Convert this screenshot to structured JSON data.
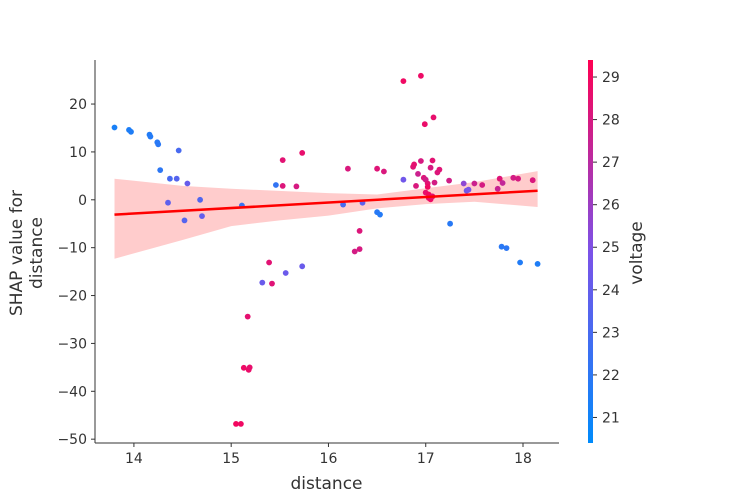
{
  "chart_data": {
    "type": "scatter",
    "title": "",
    "xlabel": "distance",
    "ylabel": "SHAP value for\ndistance",
    "xlim": [
      13.6,
      18.37
    ],
    "ylim": [
      -50.8,
      29.2
    ],
    "xticks": [
      14,
      15,
      16,
      17,
      18
    ],
    "yticks": [
      20,
      10,
      0,
      -10,
      -20,
      -30,
      -40,
      -50
    ],
    "grid": false,
    "colorbar": {
      "label": "voltage",
      "range": [
        20.4,
        29.4
      ],
      "ticks": [
        21,
        22,
        23,
        24,
        25,
        26,
        27,
        28,
        29
      ],
      "colors": [
        "#008bfb",
        "#7c52e8",
        "#ff0052"
      ]
    },
    "trend_line": {
      "color": "#ff0000",
      "points": [
        [
          13.8,
          -3.1
        ],
        [
          18.15,
          1.9
        ]
      ]
    },
    "confidence_band": {
      "color": "#ffcccc",
      "upper": [
        [
          13.8,
          4.4
        ],
        [
          14.5,
          2.9
        ],
        [
          15.0,
          2.3
        ],
        [
          16.0,
          1.4
        ],
        [
          16.5,
          1.1
        ],
        [
          17.0,
          2.4
        ],
        [
          17.5,
          3.7
        ],
        [
          18.15,
          6.0
        ]
      ],
      "lower": [
        [
          18.15,
          -1.5
        ],
        [
          17.5,
          -0.4
        ],
        [
          17.0,
          -0.9
        ],
        [
          16.5,
          -1.8
        ],
        [
          16.0,
          -3.3
        ],
        [
          15.5,
          -4.3
        ],
        [
          15.0,
          -5.5
        ],
        [
          14.5,
          -8.4
        ],
        [
          13.8,
          -12.3
        ]
      ]
    },
    "points": [
      {
        "x": 13.8,
        "y": 15.1,
        "c": 21.3
      },
      {
        "x": 13.95,
        "y": 14.6,
        "c": 21.4
      },
      {
        "x": 13.97,
        "y": 14.2,
        "c": 21.5
      },
      {
        "x": 14.16,
        "y": 13.6,
        "c": 21.6
      },
      {
        "x": 14.17,
        "y": 13.2,
        "c": 21.7
      },
      {
        "x": 14.24,
        "y": 12.0,
        "c": 21.8
      },
      {
        "x": 14.25,
        "y": 11.6,
        "c": 21.9
      },
      {
        "x": 14.27,
        "y": 6.2,
        "c": 22.0
      },
      {
        "x": 14.35,
        "y": -0.6,
        "c": 23.8
      },
      {
        "x": 14.37,
        "y": 4.4,
        "c": 23.0
      },
      {
        "x": 14.44,
        "y": 4.4,
        "c": 23.5
      },
      {
        "x": 14.46,
        "y": 10.3,
        "c": 23.0
      },
      {
        "x": 14.52,
        "y": -4.3,
        "c": 23.5
      },
      {
        "x": 14.55,
        "y": 3.4,
        "c": 24.1
      },
      {
        "x": 14.68,
        "y": 0.0,
        "c": 23.3
      },
      {
        "x": 14.7,
        "y": -3.4,
        "c": 24.0
      },
      {
        "x": 15.05,
        "y": -46.8,
        "c": 29.0
      },
      {
        "x": 15.1,
        "y": -46.8,
        "c": 28.9
      },
      {
        "x": 15.11,
        "y": -1.2,
        "c": 22.5
      },
      {
        "x": 15.13,
        "y": -35.1,
        "c": 28.8
      },
      {
        "x": 15.18,
        "y": -35.5,
        "c": 28.7
      },
      {
        "x": 15.19,
        "y": -35.0,
        "c": 28.6
      },
      {
        "x": 15.17,
        "y": -24.4,
        "c": 28.5
      },
      {
        "x": 15.32,
        "y": -17.3,
        "c": 24.2
      },
      {
        "x": 15.39,
        "y": -13.1,
        "c": 28.4
      },
      {
        "x": 15.42,
        "y": -17.5,
        "c": 28.3
      },
      {
        "x": 15.46,
        "y": 3.1,
        "c": 22.2
      },
      {
        "x": 15.53,
        "y": 2.9,
        "c": 28.2
      },
      {
        "x": 15.53,
        "y": 8.3,
        "c": 28.4
      },
      {
        "x": 15.56,
        "y": -15.3,
        "c": 24.3
      },
      {
        "x": 15.67,
        "y": 2.8,
        "c": 28.0
      },
      {
        "x": 15.73,
        "y": 9.8,
        "c": 28.6
      },
      {
        "x": 15.73,
        "y": -13.9,
        "c": 24.2
      },
      {
        "x": 16.15,
        "y": -1.0,
        "c": 23.0
      },
      {
        "x": 16.2,
        "y": 6.5,
        "c": 28.1
      },
      {
        "x": 16.27,
        "y": -10.8,
        "c": 27.9
      },
      {
        "x": 16.32,
        "y": -10.3,
        "c": 28.0
      },
      {
        "x": 16.32,
        "y": -6.5,
        "c": 28.2
      },
      {
        "x": 16.35,
        "y": -0.6,
        "c": 23.8
      },
      {
        "x": 16.5,
        "y": 6.5,
        "c": 28.3
      },
      {
        "x": 16.5,
        "y": -2.6,
        "c": 21.8
      },
      {
        "x": 16.53,
        "y": -3.1,
        "c": 21.7
      },
      {
        "x": 16.57,
        "y": 5.9,
        "c": 28.1
      },
      {
        "x": 16.77,
        "y": 24.8,
        "c": 28.9
      },
      {
        "x": 16.77,
        "y": 4.2,
        "c": 24.5
      },
      {
        "x": 16.87,
        "y": 6.9,
        "c": 28.3
      },
      {
        "x": 16.88,
        "y": 7.4,
        "c": 28.5
      },
      {
        "x": 16.9,
        "y": 2.9,
        "c": 28.1
      },
      {
        "x": 16.92,
        "y": 5.4,
        "c": 27.6
      },
      {
        "x": 16.95,
        "y": 8.1,
        "c": 28.0
      },
      {
        "x": 16.95,
        "y": 25.9,
        "c": 28.8
      },
      {
        "x": 16.98,
        "y": 4.6,
        "c": 28.2
      },
      {
        "x": 16.99,
        "y": 15.8,
        "c": 28.7
      },
      {
        "x": 17.0,
        "y": 4.2,
        "c": 27.8
      },
      {
        "x": 17.0,
        "y": 1.5,
        "c": 28.6
      },
      {
        "x": 17.02,
        "y": 3.4,
        "c": 28.4
      },
      {
        "x": 17.02,
        "y": 2.7,
        "c": 28.9
      },
      {
        "x": 17.03,
        "y": 1.1,
        "c": 29.0
      },
      {
        "x": 17.03,
        "y": 0.4,
        "c": 28.7
      },
      {
        "x": 17.05,
        "y": 0.1,
        "c": 28.8
      },
      {
        "x": 17.05,
        "y": 6.7,
        "c": 28.0
      },
      {
        "x": 17.07,
        "y": 8.2,
        "c": 28.4
      },
      {
        "x": 17.07,
        "y": 0.7,
        "c": 28.5
      },
      {
        "x": 17.08,
        "y": 17.2,
        "c": 28.6
      },
      {
        "x": 17.09,
        "y": 3.6,
        "c": 27.9
      },
      {
        "x": 17.12,
        "y": 5.7,
        "c": 28.2
      },
      {
        "x": 17.14,
        "y": 6.3,
        "c": 28.3
      },
      {
        "x": 17.24,
        "y": 4.0,
        "c": 27.8
      },
      {
        "x": 17.25,
        "y": -5.0,
        "c": 21.8
      },
      {
        "x": 17.39,
        "y": 3.4,
        "c": 25.5
      },
      {
        "x": 17.42,
        "y": 1.9,
        "c": 24.4
      },
      {
        "x": 17.44,
        "y": 2.1,
        "c": 24.8
      },
      {
        "x": 17.5,
        "y": 3.4,
        "c": 27.6
      },
      {
        "x": 17.58,
        "y": 3.1,
        "c": 28.0
      },
      {
        "x": 17.74,
        "y": 2.3,
        "c": 27.5
      },
      {
        "x": 17.76,
        "y": 4.4,
        "c": 28.3
      },
      {
        "x": 17.78,
        "y": -9.8,
        "c": 21.9
      },
      {
        "x": 17.79,
        "y": 3.5,
        "c": 27.3
      },
      {
        "x": 17.83,
        "y": -10.1,
        "c": 22.0
      },
      {
        "x": 17.9,
        "y": 4.6,
        "c": 27.9
      },
      {
        "x": 17.95,
        "y": 4.4,
        "c": 28.0
      },
      {
        "x": 17.97,
        "y": -13.1,
        "c": 21.6
      },
      {
        "x": 18.1,
        "y": 4.1,
        "c": 28.1
      },
      {
        "x": 18.15,
        "y": -13.4,
        "c": 21.5
      }
    ]
  }
}
